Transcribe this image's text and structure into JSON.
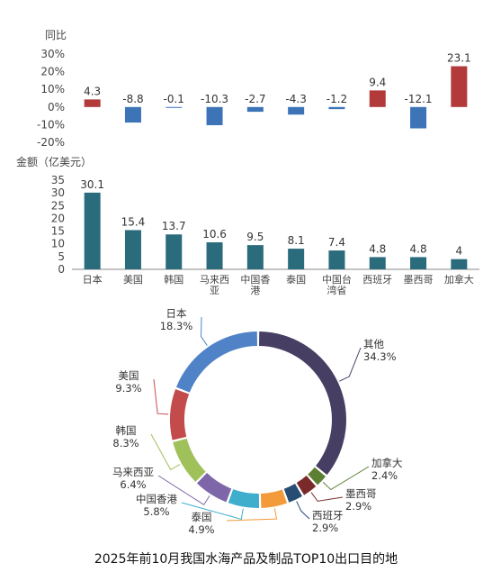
{
  "caption": "2025年前10月我国水海产品及制品TOP10出口目的地",
  "chart_data": [
    {
      "type": "bar",
      "ylabel": "同比",
      "ylim": [
        -20,
        30
      ],
      "yticks": [
        "30%",
        "20%",
        "10%",
        "0%",
        "-10%",
        "-20%"
      ],
      "categories": [
        "日本",
        "美国",
        "韩国",
        "马来西亚",
        "中国香港",
        "泰国",
        "中国台湾省",
        "西班牙",
        "墨西哥",
        "加拿大"
      ],
      "values": [
        4.3,
        -8.8,
        -0.1,
        -10.3,
        -2.7,
        -4.3,
        -1.2,
        9.4,
        -12.1,
        23.1
      ],
      "value_labels": [
        "4.3",
        "-8.8",
        "-0.1",
        "-10.3",
        "-2.7",
        "-4.3",
        "-1.2",
        "9.4",
        "-12.1",
        "23.1"
      ],
      "colors": {
        "positive": "#b23a3a",
        "negative": "#3d74b8"
      }
    },
    {
      "type": "bar",
      "ylabel": "金额（亿美元）",
      "ylim": [
        0,
        35
      ],
      "yticks": [
        "35",
        "30",
        "25",
        "20",
        "15",
        "10",
        "5",
        "0"
      ],
      "categories": [
        "日本",
        "美国",
        "韩国",
        "马来西亚",
        "中国香港",
        "泰国",
        "中国台湾省",
        "西班牙",
        "墨西哥",
        "加拿大"
      ],
      "category_labels": [
        [
          "日本"
        ],
        [
          "美国"
        ],
        [
          "韩国"
        ],
        [
          "马来西",
          "亚"
        ],
        [
          "中国香",
          "港"
        ],
        [
          "泰国"
        ],
        [
          "中国台",
          "湾省"
        ],
        [
          "西班牙"
        ],
        [
          "墨西哥"
        ],
        [
          "加拿大"
        ]
      ],
      "values": [
        30.1,
        15.4,
        13.7,
        10.6,
        9.5,
        8.1,
        7.4,
        4.8,
        4.8,
        4
      ],
      "value_labels": [
        "30.1",
        "15.4",
        "13.7",
        "10.6",
        "9.5",
        "8.1",
        "7.4",
        "4.8",
        "4.8",
        "4"
      ],
      "colors": {
        "bar": "#2a6b7c"
      }
    },
    {
      "type": "pie",
      "donut": true,
      "slices": [
        {
          "name": "其他",
          "value": 34.3,
          "label": "34.3%",
          "color": "#473e63"
        },
        {
          "name": "加拿大",
          "value": 2.4,
          "label": "2.4%",
          "color": "#5d7f34"
        },
        {
          "name": "墨西哥",
          "value": 2.9,
          "label": "2.9%",
          "color": "#7b2a2a"
        },
        {
          "name": "西班牙",
          "value": 2.9,
          "label": "2.9%",
          "color": "#284d74"
        },
        {
          "name": "泰国",
          "value": 4.9,
          "label": "4.9%",
          "color": "#f39a3a"
        },
        {
          "name": "中国香港",
          "value": 5.8,
          "label": "5.8%",
          "color": "#3faecd"
        },
        {
          "name": "马来西亚",
          "value": 6.4,
          "label": "6.4%",
          "color": "#7d67a8"
        },
        {
          "name": "韩国",
          "value": 8.3,
          "label": "8.3%",
          "color": "#a0c05a"
        },
        {
          "name": "美国",
          "value": 9.3,
          "label": "9.3%",
          "color": "#c44b4b"
        },
        {
          "name": "日本",
          "value": 18.3,
          "label": "18.3%",
          "color": "#4f82c6"
        }
      ],
      "slice_colors_note": ""
    }
  ]
}
